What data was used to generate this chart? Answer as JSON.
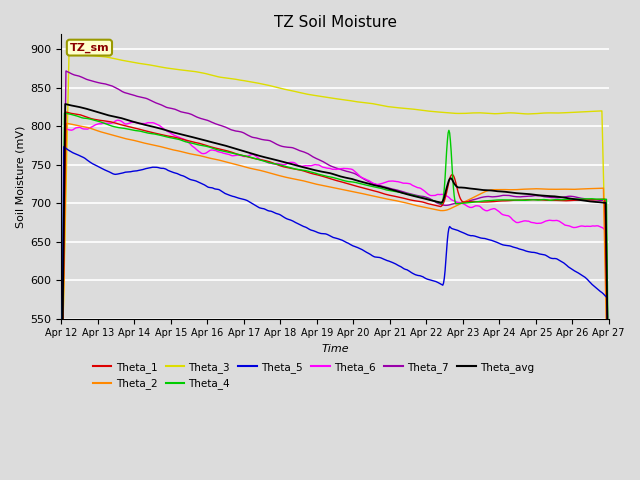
{
  "title": "TZ Soil Moisture",
  "xlabel": "Time",
  "ylabel": "Soil Moisture (mV)",
  "ylim": [
    550,
    920
  ],
  "x_tick_labels": [
    "Apr 12",
    "Apr 13",
    "Apr 14",
    "Apr 15",
    "Apr 16",
    "Apr 17",
    "Apr 18",
    "Apr 19",
    "Apr 20",
    "Apr 21",
    "Apr 22",
    "Apr 23",
    "Apr 24",
    "Apr 25",
    "Apr 26",
    "Apr 27"
  ],
  "legend_label": "TZ_sm",
  "background_color": "#dcdcdc",
  "grid_color": "#ffffff",
  "series_colors": {
    "Theta_1": "#dd0000",
    "Theta_2": "#ff8800",
    "Theta_3": "#dddd00",
    "Theta_4": "#00cc00",
    "Theta_5": "#0000dd",
    "Theta_6": "#ff00ff",
    "Theta_7": "#9900aa",
    "Theta_avg": "#000000"
  }
}
